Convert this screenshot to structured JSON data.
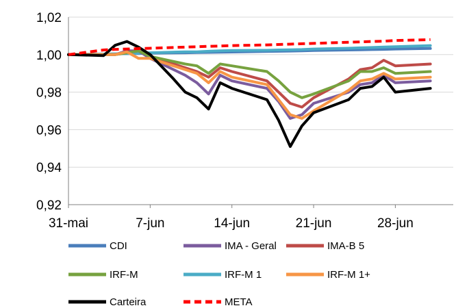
{
  "chart_data": {
    "type": "line",
    "title": "",
    "xlabel": "",
    "ylabel": "",
    "ylim": [
      0.92,
      1.02
    ],
    "y_ticks": [
      "0,92",
      "0,94",
      "0,96",
      "0,98",
      "1,00",
      "1,02"
    ],
    "x_tick_labels": [
      "31-mai",
      "7-jun",
      "14-jun",
      "21-jun",
      "28-jun"
    ],
    "x_dates": [
      "31-mai",
      "1-jun",
      "2-jun",
      "3-jun",
      "4-jun",
      "5-jun",
      "6-jun",
      "7-jun",
      "8-jun",
      "9-jun",
      "10-jun",
      "11-jun",
      "12-jun",
      "13-jun",
      "14-jun",
      "15-jun",
      "16-jun",
      "17-jun",
      "18-jun",
      "19-jun",
      "20-jun",
      "21-jun",
      "22-jun",
      "23-jun",
      "24-jun",
      "25-jun",
      "26-jun",
      "27-jun",
      "28-jun",
      "29-jun",
      "30-jun",
      "1-jul"
    ],
    "grid": "horizontal",
    "legend_position": "bottom",
    "series": [
      {
        "name": "CDI",
        "color": "#4a7ebb",
        "dash": false,
        "width": 4,
        "x": [
          0,
          3,
          4,
          5,
          6,
          7,
          10,
          11,
          12,
          13,
          14,
          17,
          18,
          19,
          20,
          21,
          24,
          25,
          26,
          27,
          28,
          31
        ],
        "y": [
          1.0,
          1.0003,
          1.0004,
          1.0005,
          1.0006,
          1.0008,
          1.001,
          1.0011,
          1.0012,
          1.0013,
          1.0014,
          1.0017,
          1.0018,
          1.0019,
          1.002,
          1.0022,
          1.0025,
          1.0026,
          1.0027,
          1.0028,
          1.003,
          1.0033
        ]
      },
      {
        "name": "IMA - Geral",
        "color": "#7b5c9e",
        "dash": false,
        "width": 4,
        "x": [
          0,
          3,
          4,
          5,
          6,
          7,
          10,
          11,
          12,
          13,
          14,
          17,
          18,
          19,
          20,
          21,
          24,
          25,
          26,
          27,
          28,
          31
        ],
        "y": [
          1.0,
          1.0,
          1.0,
          1.002,
          1.002,
          0.998,
          0.989,
          0.985,
          0.979,
          0.989,
          0.986,
          0.982,
          0.975,
          0.966,
          0.968,
          0.974,
          0.98,
          0.984,
          0.985,
          0.989,
          0.985,
          0.986
        ]
      },
      {
        "name": "IMA-B 5",
        "color": "#be4b48",
        "dash": false,
        "width": 4,
        "x": [
          0,
          3,
          4,
          5,
          6,
          7,
          10,
          11,
          12,
          13,
          14,
          17,
          18,
          19,
          20,
          21,
          24,
          25,
          26,
          27,
          28,
          31
        ],
        "y": [
          1.0,
          1.0,
          1.0,
          1.001,
          1.002,
          0.999,
          0.993,
          0.991,
          0.988,
          0.993,
          0.991,
          0.986,
          0.98,
          0.974,
          0.972,
          0.977,
          0.987,
          0.992,
          0.993,
          0.997,
          0.994,
          0.995
        ]
      },
      {
        "name": "IRF-M",
        "color": "#77a23f",
        "dash": false,
        "width": 4,
        "x": [
          0,
          3,
          4,
          5,
          6,
          7,
          10,
          11,
          12,
          13,
          14,
          17,
          18,
          19,
          20,
          21,
          24,
          25,
          26,
          27,
          28,
          31
        ],
        "y": [
          1.0,
          1.0,
          1.0,
          1.001,
          1.002,
          0.999,
          0.995,
          0.994,
          0.99,
          0.995,
          0.994,
          0.991,
          0.986,
          0.98,
          0.977,
          0.979,
          0.986,
          0.991,
          0.991,
          0.993,
          0.99,
          0.991
        ]
      },
      {
        "name": "IRF-M 1",
        "color": "#4bacc6",
        "dash": false,
        "width": 4,
        "x": [
          0,
          3,
          4,
          5,
          6,
          7,
          10,
          11,
          12,
          13,
          14,
          17,
          18,
          19,
          20,
          21,
          24,
          25,
          26,
          27,
          28,
          31
        ],
        "y": [
          1.0,
          1.0003,
          1.0004,
          1.0006,
          1.0008,
          1.001,
          1.0015,
          1.0015,
          1.0018,
          1.002,
          1.0022,
          1.0023,
          1.0025,
          1.0026,
          1.0027,
          1.003,
          1.0034,
          1.0036,
          1.0038,
          1.004,
          1.0042,
          1.0048
        ]
      },
      {
        "name": "IRF-M 1+",
        "color": "#f79646",
        "dash": false,
        "width": 4,
        "x": [
          0,
          3,
          4,
          5,
          6,
          7,
          10,
          11,
          12,
          13,
          14,
          17,
          18,
          19,
          20,
          21,
          24,
          25,
          26,
          27,
          28,
          31
        ],
        "y": [
          1.0,
          1.0,
          1.0,
          1.0015,
          0.998,
          0.998,
          0.992,
          0.99,
          0.985,
          0.991,
          0.988,
          0.984,
          0.976,
          0.968,
          0.966,
          0.97,
          0.981,
          0.986,
          0.987,
          0.99,
          0.987,
          0.988
        ]
      },
      {
        "name": "Carteira",
        "color": "#000000",
        "dash": false,
        "width": 4,
        "x": [
          0,
          3,
          4,
          5,
          6,
          7,
          9,
          10,
          11,
          12,
          13,
          14,
          17,
          18,
          19,
          20,
          21,
          24,
          25,
          26,
          27,
          28,
          31
        ],
        "y": [
          1.0,
          0.9995,
          1.005,
          1.007,
          1.004,
          1.0,
          0.987,
          0.98,
          0.977,
          0.971,
          0.985,
          0.982,
          0.976,
          0.965,
          0.951,
          0.962,
          0.969,
          0.976,
          0.982,
          0.983,
          0.988,
          0.98,
          0.982
        ]
      },
      {
        "name": "META",
        "color": "#ff0000",
        "dash": true,
        "width": 4,
        "x": [
          0,
          3,
          4,
          5,
          6,
          7,
          10,
          11,
          12,
          13,
          14,
          17,
          18,
          19,
          20,
          21,
          24,
          25,
          26,
          27,
          28,
          31
        ],
        "y": [
          1.0,
          1.0025,
          1.0028,
          1.003,
          1.0032,
          1.0034,
          1.004,
          1.0042,
          1.0044,
          1.0046,
          1.0048,
          1.0052,
          1.0054,
          1.0056,
          1.0058,
          1.006,
          1.0066,
          1.0068,
          1.007,
          1.0072,
          1.0075,
          1.008
        ]
      }
    ]
  }
}
